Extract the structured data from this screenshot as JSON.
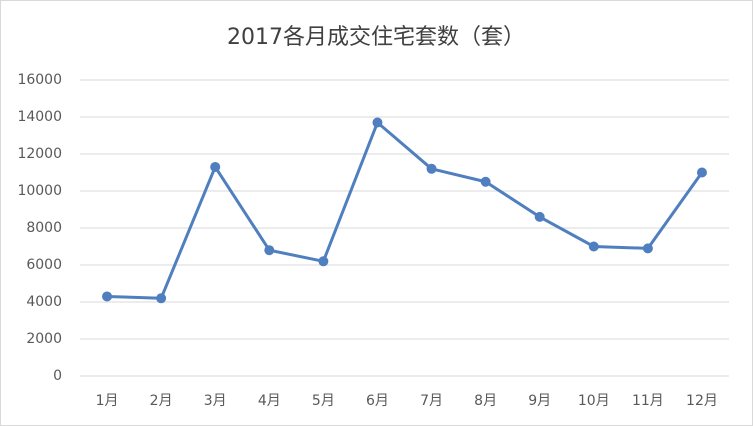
{
  "chart_data": {
    "type": "line",
    "title": "2017各月成交住宅套数（套）",
    "categories": [
      "1月",
      "2月",
      "3月",
      "4月",
      "5月",
      "6月",
      "7月",
      "8月",
      "9月",
      "10月",
      "11月",
      "12月"
    ],
    "series": [
      {
        "name": "成交住宅套数",
        "color": "#4f7fbf",
        "values": [
          4300,
          4200,
          11300,
          6800,
          6200,
          13700,
          11200,
          10500,
          8600,
          7000,
          6900,
          11000
        ]
      }
    ],
    "ylim": [
      0,
      16000
    ],
    "yticks": [
      0,
      2000,
      4000,
      6000,
      8000,
      10000,
      12000,
      14000,
      16000
    ],
    "grid": true
  }
}
